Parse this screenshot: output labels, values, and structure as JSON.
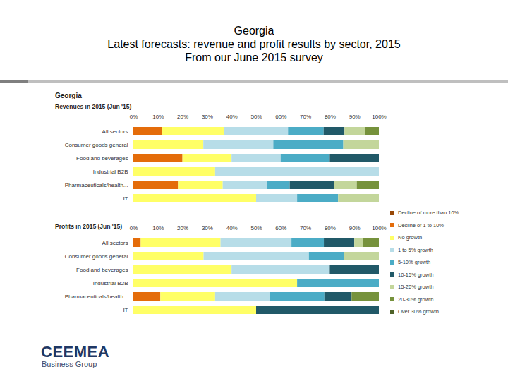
{
  "header": {
    "title": "Georgia",
    "subtitle": "Latest forecasts: revenue and profit results by sector, 2015",
    "note": "From our June 2015 survey"
  },
  "panel_title": "Georgia",
  "footer": {
    "logo": "CEEMEA",
    "tagline": "Business Group"
  },
  "chart_data": [
    {
      "type": "bar",
      "orientation": "horizontal",
      "stacked": true,
      "grid": false,
      "legend": "right",
      "title": "Revenues in 2015 (Jun '15)",
      "categories": [
        "All sectors",
        "Consumer goods general",
        "Food and beverages",
        "Industrial B2B",
        "Pharmaceuticals/health...",
        "IT"
      ],
      "xlim": [
        0,
        100
      ],
      "xticks": [
        {
          "value": 0,
          "label": "0%"
        },
        {
          "value": 10,
          "label": "10%"
        },
        {
          "value": 20,
          "label": "20%"
        },
        {
          "value": 30,
          "label": "30%"
        },
        {
          "value": 40,
          "label": "40%"
        },
        {
          "value": 50,
          "label": "50%"
        },
        {
          "value": 60,
          "label": "60%"
        },
        {
          "value": 70,
          "label": "70%"
        },
        {
          "value": 80,
          "label": "80%"
        },
        {
          "value": 90,
          "label": "90%"
        },
        {
          "value": 100,
          "label": "100%"
        }
      ],
      "series": [
        {
          "name": "Decline of more than 10%",
          "color": "#984807",
          "values": [
            0,
            0,
            0,
            0,
            0,
            0
          ]
        },
        {
          "name": "Decline of 1 to 10%",
          "color": "#e46c0a",
          "values": [
            11.5,
            0,
            20,
            0,
            18.2,
            0
          ]
        },
        {
          "name": "No growth",
          "color": "#ffff66",
          "values": [
            25.5,
            28.5,
            20,
            33.3,
            18.2,
            50
          ]
        },
        {
          "name": "1 to 5% growth",
          "color": "#b7dde8",
          "values": [
            26,
            28.5,
            20,
            66.7,
            18.2,
            16.7
          ]
        },
        {
          "name": "5-10% growth",
          "color": "#4bacc6",
          "values": [
            14.5,
            28.5,
            20,
            0,
            9.1,
            16.7
          ]
        },
        {
          "name": "10-15% growth",
          "color": "#215968",
          "values": [
            8.5,
            0,
            20,
            0,
            18.2,
            0
          ]
        },
        {
          "name": "15-20% growth",
          "color": "#c3d69b",
          "values": [
            8.5,
            14.5,
            0,
            0,
            9.1,
            16.6
          ]
        },
        {
          "name": "20-30% growth",
          "color": "#76923c",
          "values": [
            5.5,
            0,
            0,
            0,
            9.0,
            0
          ]
        },
        {
          "name": "Over 30% growth",
          "color": "#4f6228",
          "values": [
            0,
            0,
            0,
            0,
            0,
            0
          ]
        }
      ]
    },
    {
      "type": "bar",
      "orientation": "horizontal",
      "stacked": true,
      "grid": false,
      "title": "Profits in 2015 (Jun '15)",
      "categories": [
        "All sectors",
        "Consumer goods general",
        "Food and beverages",
        "Industrial B2B",
        "Pharmaceuticals/health...",
        "IT"
      ],
      "xlim": [
        0,
        100
      ],
      "xticks": [
        {
          "value": 0,
          "label": "0%"
        },
        {
          "value": 10,
          "label": "10%"
        },
        {
          "value": 20,
          "label": "20%"
        },
        {
          "value": 30,
          "label": "30%"
        },
        {
          "value": 40,
          "label": "40%"
        },
        {
          "value": 50,
          "label": "50%"
        },
        {
          "value": 60,
          "label": "60%"
        },
        {
          "value": 70,
          "label": "70%"
        },
        {
          "value": 80,
          "label": "80%"
        },
        {
          "value": 90,
          "label": "90%"
        },
        {
          "value": 100,
          "label": "100%"
        }
      ],
      "series": [
        {
          "name": "Decline of more than 10%",
          "color": "#984807",
          "values": [
            0,
            0,
            0,
            0,
            0,
            0
          ]
        },
        {
          "name": "Decline of 1 to 10%",
          "color": "#e46c0a",
          "values": [
            3,
            0,
            0,
            0,
            11,
            0
          ]
        },
        {
          "name": "No growth",
          "color": "#ffff66",
          "values": [
            32.5,
            28.6,
            40,
            66.7,
            22.3,
            50
          ]
        },
        {
          "name": "1 to 5% growth",
          "color": "#b7dde8",
          "values": [
            28.9,
            42.9,
            40,
            0,
            22.3,
            0
          ]
        },
        {
          "name": "5-10% growth",
          "color": "#4bacc6",
          "values": [
            13.2,
            14.2,
            0,
            33.3,
            22.2,
            0
          ]
        },
        {
          "name": "10-15% growth",
          "color": "#215968",
          "values": [
            12.4,
            0,
            20,
            0,
            11.1,
            50
          ]
        },
        {
          "name": "15-20% growth",
          "color": "#c3d69b",
          "values": [
            3.4,
            14.3,
            0,
            0,
            0,
            0
          ]
        },
        {
          "name": "20-30% growth",
          "color": "#76923c",
          "values": [
            6.6,
            0,
            0,
            0,
            11.1,
            0
          ]
        },
        {
          "name": "Over 30% growth",
          "color": "#4f6228",
          "values": [
            0,
            0,
            0,
            0,
            0,
            0
          ]
        }
      ]
    }
  ]
}
